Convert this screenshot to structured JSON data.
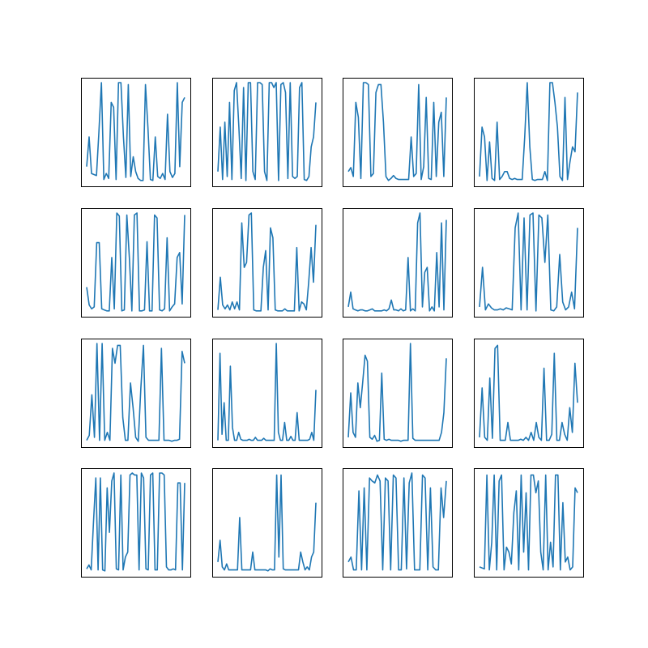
{
  "figure": {
    "background": "#ffffff",
    "line_color": "#1f77b4",
    "frame_color": "#000000",
    "rows": 4,
    "cols": 4
  },
  "chart_data": [
    {
      "type": "line",
      "x_ticks": "hidden",
      "y_ticks": "hidden",
      "grid": false,
      "ylim": [
        0,
        1
      ],
      "values": [
        0.15,
        0.45,
        0.08,
        0.07,
        0.06,
        0.5,
        1.0,
        0.02,
        0.08,
        0.03,
        0.8,
        0.75,
        0.02,
        1.0,
        1.0,
        0.45,
        0.04,
        0.98,
        0.05,
        0.25,
        0.1,
        0.03,
        0.01,
        0.01,
        0.98,
        0.55,
        0.02,
        0.01,
        0.45,
        0.05,
        0.03,
        0.08,
        0.02,
        0.68,
        0.1,
        0.04,
        0.08,
        1.0,
        0.15,
        0.8,
        0.85
      ]
    },
    {
      "type": "line",
      "x_ticks": "hidden",
      "y_ticks": "hidden",
      "grid": false,
      "ylim": [
        0,
        1
      ],
      "values": [
        0.1,
        0.55,
        0.02,
        0.6,
        0.05,
        0.8,
        0.02,
        0.92,
        1.0,
        0.55,
        0.03,
        0.95,
        0.01,
        1.0,
        1.0,
        0.1,
        0.02,
        1.0,
        1.0,
        0.98,
        0.1,
        0.01,
        1.0,
        1.0,
        0.95,
        1.0,
        0.01,
        0.98,
        1.0,
        0.9,
        0.03,
        1.0,
        0.05,
        0.03,
        0.05,
        0.95,
        1.0,
        0.02,
        0.01,
        0.05,
        0.35,
        0.45,
        0.8
      ]
    },
    {
      "type": "line",
      "x_ticks": "hidden",
      "y_ticks": "hidden",
      "grid": false,
      "ylim": [
        0,
        1
      ],
      "values": [
        0.1,
        0.14,
        0.05,
        0.8,
        0.65,
        0.03,
        1.0,
        1.0,
        0.98,
        0.05,
        0.08,
        0.9,
        0.98,
        0.98,
        0.6,
        0.05,
        0.01,
        0.03,
        0.06,
        0.03,
        0.02,
        0.02,
        0.02,
        0.02,
        0.02,
        0.45,
        0.05,
        0.08,
        0.98,
        0.02,
        0.15,
        0.85,
        0.03,
        0.02,
        0.8,
        0.05,
        0.6,
        0.7,
        0.05,
        0.85
      ]
    },
    {
      "type": "line",
      "x_ticks": "hidden",
      "y_ticks": "hidden",
      "grid": false,
      "ylim": [
        0,
        1
      ],
      "values": [
        0.05,
        0.55,
        0.45,
        0.01,
        0.4,
        0.03,
        0.01,
        0.6,
        0.02,
        0.05,
        0.1,
        0.1,
        0.03,
        0.02,
        0.03,
        0.02,
        0.02,
        0.02,
        0.45,
        1.0,
        0.35,
        0.02,
        0.01,
        0.02,
        0.02,
        0.02,
        0.1,
        0.01,
        1.0,
        1.0,
        0.8,
        0.55,
        0.05,
        0.01,
        0.85,
        0.02,
        0.2,
        0.35,
        0.3,
        0.9
      ]
    },
    {
      "type": "line",
      "x_ticks": "hidden",
      "y_ticks": "hidden",
      "grid": false,
      "ylim": [
        0,
        1
      ],
      "values": [
        0.25,
        0.07,
        0.03,
        0.05,
        0.7,
        0.7,
        0.03,
        0.02,
        0.01,
        0.01,
        0.55,
        0.03,
        1.0,
        0.97,
        0.01,
        0.02,
        0.98,
        0.55,
        0.01,
        0.98,
        1.0,
        0.01,
        0.01,
        0.02,
        0.71,
        0.01,
        0.01,
        0.98,
        0.95,
        0.02,
        0.01,
        0.03,
        0.75,
        0.01,
        0.05,
        0.08,
        0.55,
        0.6,
        0.08,
        0.98
      ]
    },
    {
      "type": "line",
      "x_ticks": "hidden",
      "y_ticks": "hidden",
      "grid": false,
      "ylim": [
        0,
        1
      ],
      "values": [
        0.02,
        0.35,
        0.07,
        0.03,
        0.07,
        0.02,
        0.1,
        0.03,
        0.1,
        0.02,
        0.9,
        0.45,
        0.5,
        0.98,
        1.0,
        0.02,
        0.01,
        0.01,
        0.01,
        0.45,
        0.62,
        0.02,
        0.85,
        0.75,
        0.02,
        0.01,
        0.01,
        0.01,
        0.03,
        0.01,
        0.01,
        0.01,
        0.01,
        0.65,
        0.01,
        0.1,
        0.08,
        0.02,
        0.3,
        0.65,
        0.3,
        0.88
      ]
    },
    {
      "type": "line",
      "x_ticks": "hidden",
      "y_ticks": "hidden",
      "grid": false,
      "ylim": [
        0,
        1
      ],
      "values": [
        0.05,
        0.2,
        0.03,
        0.02,
        0.01,
        0.02,
        0.02,
        0.01,
        0.01,
        0.02,
        0.03,
        0.01,
        0.01,
        0.01,
        0.01,
        0.02,
        0.01,
        0.03,
        0.12,
        0.02,
        0.02,
        0.01,
        0.03,
        0.01,
        0.02,
        0.55,
        0.01,
        0.03,
        0.01,
        0.9,
        1.0,
        0.05,
        0.4,
        0.45,
        0.01,
        0.05,
        0.01,
        0.6,
        0.05,
        0.9,
        0.02,
        0.93
      ]
    },
    {
      "type": "line",
      "x_ticks": "hidden",
      "y_ticks": "hidden",
      "grid": false,
      "ylim": [
        0,
        1
      ],
      "values": [
        0.05,
        0.45,
        0.02,
        0.08,
        0.04,
        0.02,
        0.02,
        0.03,
        0.02,
        0.04,
        0.03,
        0.02,
        0.85,
        1.0,
        0.02,
        0.95,
        0.02,
        0.98,
        1.0,
        0.01,
        0.98,
        0.95,
        0.5,
        0.98,
        0.02,
        0.01,
        0.05,
        0.58,
        0.1,
        0.02,
        0.05,
        0.2,
        0.03,
        0.85
      ]
    },
    {
      "type": "line",
      "x_ticks": "hidden",
      "y_ticks": "hidden",
      "grid": false,
      "ylim": [
        0,
        1
      ],
      "values": [
        0.02,
        0.07,
        0.48,
        0.05,
        1.0,
        0.02,
        1.0,
        0.02,
        0.1,
        0.02,
        0.95,
        0.8,
        0.98,
        0.98,
        0.25,
        0.02,
        0.02,
        0.6,
        0.35,
        0.05,
        0.01,
        0.55,
        0.98,
        0.05,
        0.02,
        0.02,
        0.02,
        0.02,
        0.02,
        0.95,
        0.02,
        0.02,
        0.02,
        0.01,
        0.02,
        0.02,
        0.03,
        0.92,
        0.8
      ]
    },
    {
      "type": "line",
      "x_ticks": "hidden",
      "y_ticks": "hidden",
      "grid": false,
      "ylim": [
        0,
        1
      ],
      "values": [
        0.02,
        0.9,
        0.08,
        0.4,
        0.02,
        0.02,
        0.77,
        0.15,
        0.02,
        0.02,
        0.1,
        0.03,
        0.02,
        0.02,
        0.02,
        0.03,
        0.02,
        0.02,
        0.05,
        0.02,
        0.02,
        0.02,
        0.04,
        0.02,
        0.02,
        0.02,
        0.02,
        0.02,
        1.0,
        0.1,
        0.02,
        0.02,
        0.2,
        0.02,
        0.02,
        0.06,
        0.02,
        0.02,
        0.3,
        0.02,
        0.02,
        0.02,
        0.02,
        0.02,
        0.03,
        0.1,
        0.02,
        0.53
      ]
    },
    {
      "type": "line",
      "x_ticks": "hidden",
      "y_ticks": "hidden",
      "grid": false,
      "ylim": [
        0,
        1
      ],
      "values": [
        0.05,
        0.5,
        0.1,
        0.05,
        0.6,
        0.35,
        0.6,
        0.88,
        0.82,
        0.05,
        0.03,
        0.07,
        0.01,
        0.02,
        0.7,
        0.03,
        0.02,
        0.03,
        0.02,
        0.02,
        0.02,
        0.02,
        0.01,
        0.02,
        0.02,
        0.02,
        1.0,
        0.04,
        0.02,
        0.02,
        0.02,
        0.02,
        0.02,
        0.02,
        0.02,
        0.02,
        0.02,
        0.02,
        0.02,
        0.1,
        0.3,
        0.85
      ]
    },
    {
      "type": "line",
      "x_ticks": "hidden",
      "y_ticks": "hidden",
      "grid": false,
      "ylim": [
        0,
        1
      ],
      "values": [
        0.05,
        0.55,
        0.05,
        0.02,
        0.65,
        0.04,
        0.95,
        0.98,
        0.02,
        0.02,
        0.02,
        0.2,
        0.02,
        0.02,
        0.02,
        0.02,
        0.03,
        0.02,
        0.05,
        0.02,
        0.1,
        0.02,
        0.2,
        0.05,
        0.02,
        0.75,
        0.02,
        0.02,
        0.08,
        0.9,
        0.02,
        0.02,
        0.2,
        0.08,
        0.02,
        0.35,
        0.1,
        0.8,
        0.4
      ]
    },
    {
      "type": "line",
      "x_ticks": "hidden",
      "y_ticks": "hidden",
      "grid": false,
      "ylim": [
        0,
        1
      ],
      "values": [
        0.03,
        0.07,
        0.02,
        0.5,
        0.95,
        0.02,
        0.95,
        0.02,
        0.01,
        0.85,
        0.4,
        0.92,
        1.0,
        0.03,
        0.02,
        0.98,
        0.02,
        0.15,
        0.2,
        0.98,
        1.0,
        0.98,
        0.98,
        0.02,
        1.0,
        0.95,
        0.03,
        0.02,
        0.98,
        1.0,
        0.02,
        0.02,
        1.0,
        1.0,
        0.98,
        0.05,
        0.02,
        0.02,
        0.03,
        0.02,
        0.9,
        0.9,
        0.02,
        0.9
      ]
    },
    {
      "type": "line",
      "x_ticks": "hidden",
      "y_ticks": "hidden",
      "grid": false,
      "ylim": [
        0,
        1
      ],
      "values": [
        0.1,
        0.32,
        0.05,
        0.02,
        0.08,
        0.02,
        0.02,
        0.02,
        0.02,
        0.02,
        0.55,
        0.02,
        0.02,
        0.02,
        0.02,
        0.02,
        0.2,
        0.02,
        0.02,
        0.02,
        0.02,
        0.02,
        0.02,
        0.01,
        0.03,
        0.02,
        0.02,
        0.98,
        0.15,
        0.98,
        0.03,
        0.02,
        0.02,
        0.02,
        0.02,
        0.02,
        0.02,
        0.02,
        0.2,
        0.1,
        0.02,
        0.05,
        0.02,
        0.15,
        0.2,
        0.7
      ]
    },
    {
      "type": "line",
      "x_ticks": "hidden",
      "y_ticks": "hidden",
      "grid": false,
      "ylim": [
        0,
        1
      ],
      "values": [
        0.1,
        0.15,
        0.02,
        0.02,
        0.82,
        0.02,
        0.85,
        0.02,
        0.95,
        0.92,
        0.9,
        0.98,
        0.92,
        0.02,
        0.95,
        0.92,
        0.02,
        0.98,
        0.95,
        0.02,
        0.02,
        0.95,
        0.03,
        0.9,
        1.0,
        0.02,
        0.02,
        0.02,
        0.98,
        0.95,
        0.02,
        0.85,
        0.05,
        0.02,
        0.02,
        0.85,
        0.55,
        0.92
      ]
    },
    {
      "type": "line",
      "x_ticks": "hidden",
      "y_ticks": "hidden",
      "grid": false,
      "ylim": [
        0,
        1
      ],
      "values": [
        0.05,
        0.04,
        0.03,
        0.98,
        0.02,
        0.3,
        0.98,
        0.02,
        0.92,
        0.98,
        0.02,
        0.25,
        0.2,
        0.08,
        0.6,
        0.82,
        0.02,
        0.98,
        0.2,
        0.8,
        0.02,
        0.98,
        0.98,
        0.8,
        0.92,
        0.2,
        0.02,
        0.98,
        0.02,
        0.3,
        0.05,
        0.98,
        0.98,
        0.02,
        0.7,
        0.1,
        0.15,
        0.02,
        0.05,
        0.85,
        0.8
      ]
    }
  ]
}
